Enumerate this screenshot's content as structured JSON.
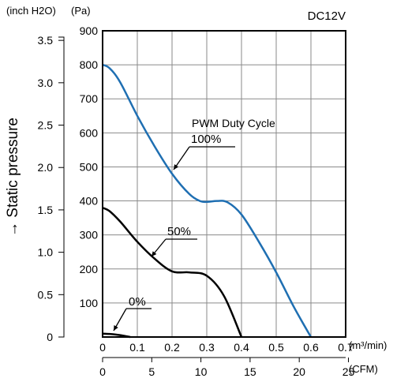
{
  "chart_data": {
    "type": "line",
    "title": "DC12V",
    "ylabel": "→ Static pressure",
    "unit_inch": "(inch H2O)",
    "unit_pa": "(Pa)",
    "unit_m3": "(m³/min)",
    "unit_cfm": "(CFM)",
    "y_pa_ticks": [
      "100",
      "200",
      "300",
      "400",
      "500",
      "600",
      "700",
      "800",
      "900"
    ],
    "y_inch_ticks": [
      "0",
      "0.5",
      "1.0",
      "1.5",
      "2.0",
      "2.5",
      "3.0",
      "3.5"
    ],
    "x_m3_ticks": [
      "0",
      "0.1",
      "0.2",
      "0.3",
      "0.4",
      "0.5",
      "0.6",
      "0.7"
    ],
    "x_cfm_ticks": [
      "0",
      "5",
      "10",
      "15",
      "20",
      "25"
    ],
    "xlim": [
      0,
      0.7
    ],
    "ylim": [
      0,
      900
    ],
    "grid": true,
    "annotation_title": "PWM Duty Cycle",
    "series": [
      {
        "name": "100%",
        "color": "#1f6fb2",
        "x": [
          0,
          0.02,
          0.05,
          0.1,
          0.15,
          0.2,
          0.25,
          0.28,
          0.3,
          0.33,
          0.36,
          0.4,
          0.45,
          0.5,
          0.55,
          0.6
        ],
        "y": [
          800,
          790,
          750,
          650,
          560,
          480,
          420,
          400,
          397,
          400,
          396,
          360,
          280,
          190,
          90,
          0
        ]
      },
      {
        "name": "50%",
        "color": "#000000",
        "x": [
          0,
          0.02,
          0.05,
          0.1,
          0.15,
          0.2,
          0.25,
          0.3,
          0.35,
          0.4
        ],
        "y": [
          380,
          370,
          340,
          280,
          230,
          193,
          190,
          180,
          120,
          0
        ]
      },
      {
        "name": "0%",
        "color": "#000000",
        "x": [
          0,
          0.02,
          0.04,
          0.06,
          0.08
        ],
        "y": [
          10,
          9,
          7,
          4,
          0
        ]
      }
    ]
  }
}
